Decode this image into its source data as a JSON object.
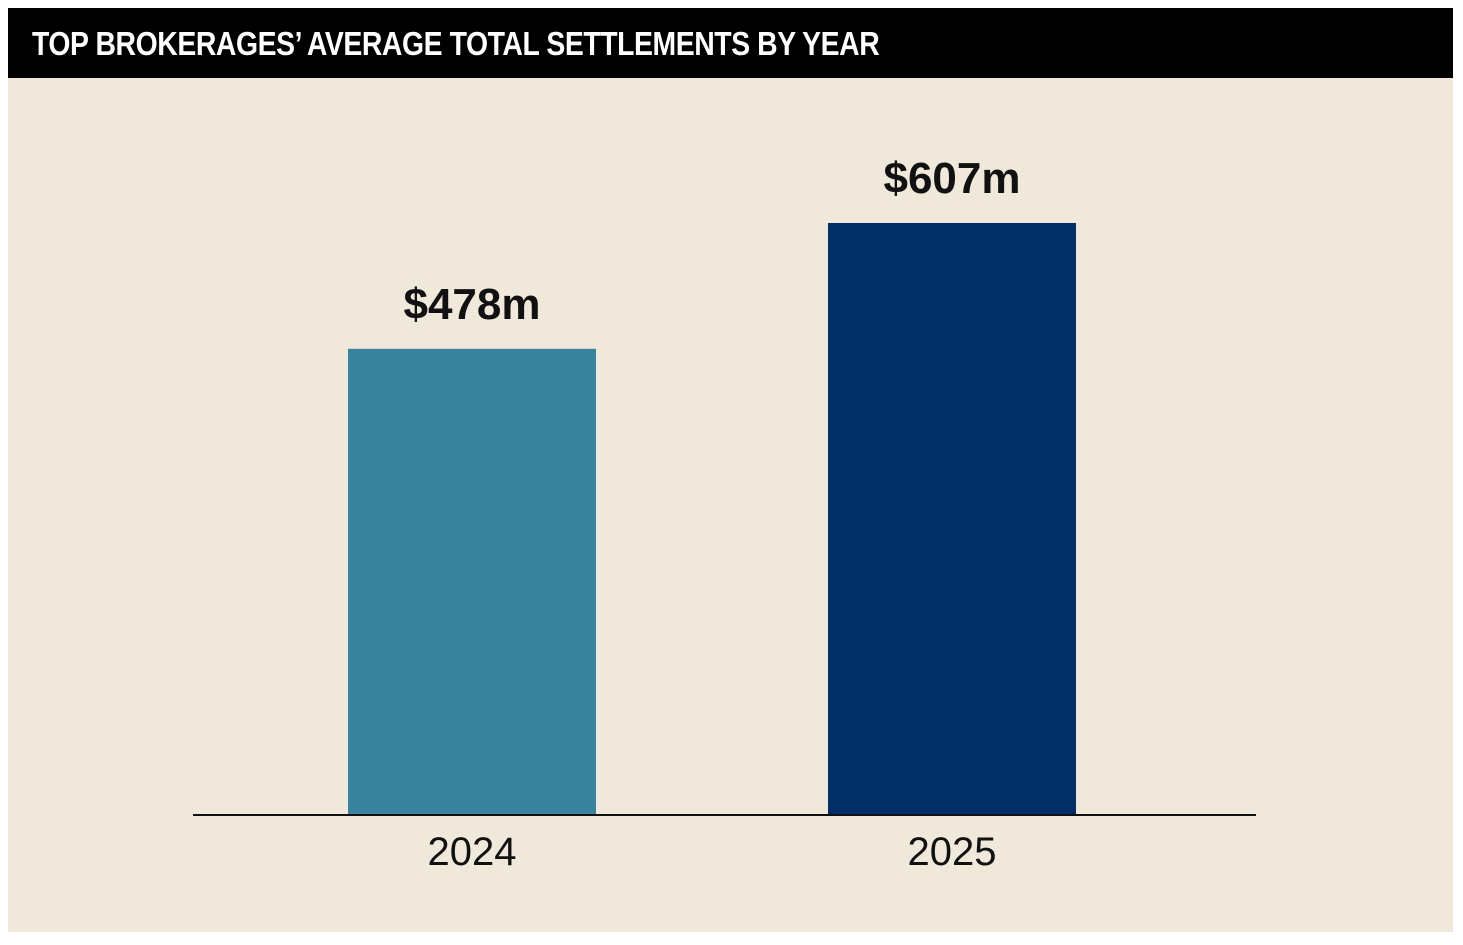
{
  "title": "TOP BROKERAGES’ AVERAGE TOTAL SETTLEMENTS BY YEAR",
  "colors": {
    "background": "#f0e8da",
    "title_bar": "#000000",
    "title_text": "#ffffff",
    "axis": "#111111"
  },
  "chart_data": {
    "type": "bar",
    "title": "TOP BROKERAGES’ AVERAGE TOTAL SETTLEMENTS BY YEAR",
    "categories": [
      "2024",
      "2025"
    ],
    "values": [
      478,
      607
    ],
    "value_labels": [
      "$478m",
      "$607m"
    ],
    "bar_colors": [
      "#3a839e",
      "#022e68"
    ],
    "unit": "$m",
    "ylim": [
      0,
      607
    ],
    "grid": false,
    "legend": "none"
  }
}
